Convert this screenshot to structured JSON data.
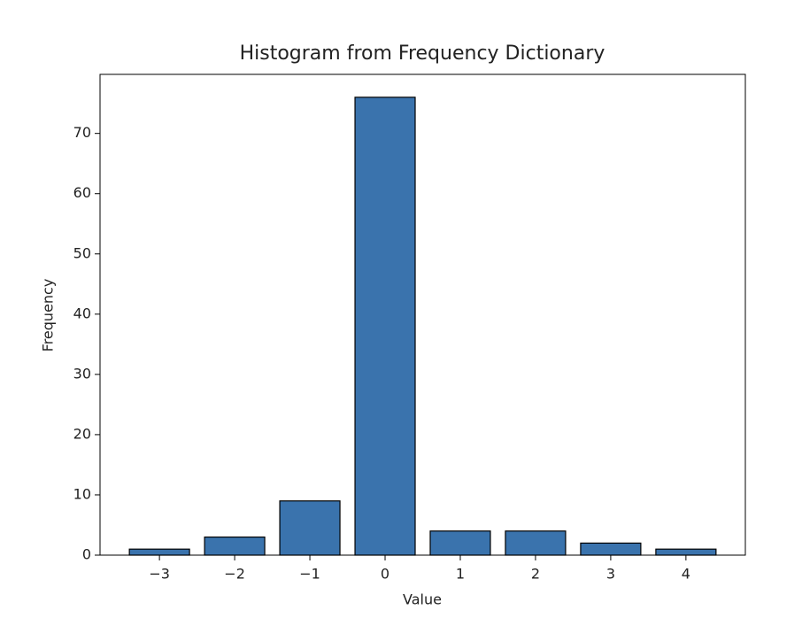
{
  "chart_data": {
    "type": "bar",
    "title": "Histogram from Frequency Dictionary",
    "x_label": "Value",
    "y_label": "Frequency",
    "x": [
      -3,
      -2,
      -1,
      0,
      1,
      2,
      3,
      4
    ],
    "values": [
      1,
      3,
      9,
      76,
      4,
      4,
      2,
      1
    ],
    "color": "#3a73ad",
    "edgecolor": "#000000",
    "xlim": [
      -3.79,
      4.79
    ],
    "xticks": [
      {
        "value": -3,
        "label": "−3"
      },
      {
        "value": -2,
        "label": "−2"
      },
      {
        "value": -1,
        "label": "−1"
      },
      0,
      1,
      2,
      3,
      4
    ],
    "ylim": [
      0,
      79.8
    ],
    "yticks": [
      0,
      10,
      20,
      30,
      40,
      50,
      60,
      70
    ],
    "grid": false
  }
}
